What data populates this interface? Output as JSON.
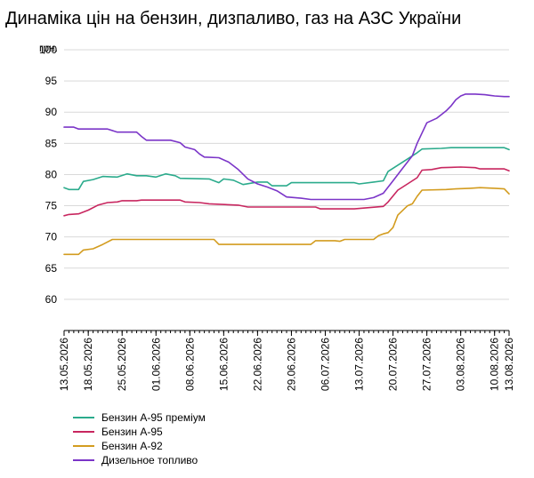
{
  "header": {
    "title": "Динаміка цін на бензин, дизпаливо, газ на АЗС України"
  },
  "chart_data": {
    "type": "line",
    "title": "Динаміка цін на бензин, дизпаливо, газ на АЗС України",
    "ylabel": "грн.",
    "xlabel": "",
    "ylim": [
      55,
      100
    ],
    "xlim": [
      "13.05.2026",
      "13.08.2026"
    ],
    "yticks": [
      60,
      65,
      70,
      75,
      80,
      85,
      90,
      95,
      100
    ],
    "xticks": [
      "13.05.2026",
      "18.05.2026",
      "25.05.2026",
      "01.06.2026",
      "08.06.2026",
      "15.06.2026",
      "22.06.2026",
      "29.06.2026",
      "06.07.2026",
      "13.07.2026",
      "20.07.2026",
      "27.07.2026",
      "03.08.2026",
      "10.08.2026",
      "13.08.2026"
    ],
    "grid": "horizontal",
    "legend_position": "bottom",
    "series": [
      {
        "name": "Бензин А-95 преміум",
        "color": "#2bab8c",
        "points": [
          [
            "13.05.2026",
            77.9
          ],
          [
            "14.05.2026",
            77.6
          ],
          [
            "16.05.2026",
            77.6
          ],
          [
            "17.05.2026",
            78.9
          ],
          [
            "19.05.2026",
            79.2
          ],
          [
            "21.05.2026",
            79.7
          ],
          [
            "24.05.2026",
            79.6
          ],
          [
            "26.05.2026",
            80.1
          ],
          [
            "28.05.2026",
            79.8
          ],
          [
            "30.05.2026",
            79.8
          ],
          [
            "01.06.2026",
            79.6
          ],
          [
            "03.06.2026",
            80.1
          ],
          [
            "05.06.2026",
            79.8
          ],
          [
            "06.06.2026",
            79.4
          ],
          [
            "12.06.2026",
            79.3
          ],
          [
            "14.06.2026",
            78.7
          ],
          [
            "15.06.2026",
            79.3
          ],
          [
            "17.06.2026",
            79.1
          ],
          [
            "19.06.2026",
            78.4
          ],
          [
            "22.06.2026",
            78.8
          ],
          [
            "24.06.2026",
            78.8
          ],
          [
            "25.06.2026",
            78.2
          ],
          [
            "28.06.2026",
            78.2
          ],
          [
            "29.06.2026",
            78.7
          ],
          [
            "12.07.2026",
            78.7
          ],
          [
            "13.07.2026",
            78.5
          ],
          [
            "16.07.2026",
            78.8
          ],
          [
            "18.07.2026",
            79.0
          ],
          [
            "19.07.2026",
            80.5
          ],
          [
            "21.07.2026",
            81.5
          ],
          [
            "23.07.2026",
            82.5
          ],
          [
            "25.07.2026",
            83.5
          ],
          [
            "26.07.2026",
            84.1
          ],
          [
            "30.07.2026",
            84.2
          ],
          [
            "01.08.2026",
            84.3
          ],
          [
            "12.08.2026",
            84.3
          ],
          [
            "13.08.2026",
            84.0
          ]
        ]
      },
      {
        "name": "Бензин А-95",
        "color": "#c8265f",
        "points": [
          [
            "13.05.2026",
            73.4
          ],
          [
            "14.05.2026",
            73.6
          ],
          [
            "16.05.2026",
            73.7
          ],
          [
            "18.05.2026",
            74.3
          ],
          [
            "20.05.2026",
            75.1
          ],
          [
            "22.05.2026",
            75.5
          ],
          [
            "24.05.2026",
            75.6
          ],
          [
            "25.05.2026",
            75.8
          ],
          [
            "28.05.2026",
            75.8
          ],
          [
            "29.05.2026",
            75.9
          ],
          [
            "06.06.2026",
            75.9
          ],
          [
            "07.06.2026",
            75.6
          ],
          [
            "10.06.2026",
            75.5
          ],
          [
            "12.06.2026",
            75.3
          ],
          [
            "18.06.2026",
            75.1
          ],
          [
            "20.06.2026",
            74.8
          ],
          [
            "04.07.2026",
            74.8
          ],
          [
            "05.07.2026",
            74.5
          ],
          [
            "12.07.2026",
            74.5
          ],
          [
            "15.07.2026",
            74.7
          ],
          [
            "18.07.2026",
            74.9
          ],
          [
            "19.07.2026",
            75.6
          ],
          [
            "21.07.2026",
            77.5
          ],
          [
            "23.07.2026",
            78.5
          ],
          [
            "25.07.2026",
            79.5
          ],
          [
            "26.07.2026",
            80.7
          ],
          [
            "28.07.2026",
            80.8
          ],
          [
            "30.07.2026",
            81.1
          ],
          [
            "03.08.2026",
            81.2
          ],
          [
            "06.08.2026",
            81.1
          ],
          [
            "07.08.2026",
            80.9
          ],
          [
            "12.08.2026",
            80.9
          ],
          [
            "13.08.2026",
            80.6
          ]
        ]
      },
      {
        "name": "Бензин А-92",
        "color": "#d39c1f",
        "points": [
          [
            "13.05.2026",
            67.2
          ],
          [
            "16.05.2026",
            67.2
          ],
          [
            "17.05.2026",
            67.9
          ],
          [
            "19.05.2026",
            68.1
          ],
          [
            "21.05.2026",
            68.8
          ],
          [
            "23.05.2026",
            69.6
          ],
          [
            "13.06.2026",
            69.6
          ],
          [
            "14.06.2026",
            68.8
          ],
          [
            "03.07.2026",
            68.8
          ],
          [
            "04.07.2026",
            69.4
          ],
          [
            "08.07.2026",
            69.4
          ],
          [
            "09.07.2026",
            69.3
          ],
          [
            "10.07.2026",
            69.6
          ],
          [
            "16.07.2026",
            69.6
          ],
          [
            "17.07.2026",
            70.2
          ],
          [
            "18.07.2026",
            70.5
          ],
          [
            "19.07.2026",
            70.7
          ],
          [
            "20.07.2026",
            71.5
          ],
          [
            "21.07.2026",
            73.5
          ],
          [
            "23.07.2026",
            75.0
          ],
          [
            "24.07.2026",
            75.3
          ],
          [
            "25.07.2026",
            76.5
          ],
          [
            "26.07.2026",
            77.5
          ],
          [
            "31.07.2026",
            77.6
          ],
          [
            "02.08.2026",
            77.7
          ],
          [
            "05.08.2026",
            77.8
          ],
          [
            "07.08.2026",
            77.9
          ],
          [
            "10.08.2026",
            77.8
          ],
          [
            "12.08.2026",
            77.7
          ],
          [
            "13.08.2026",
            76.9
          ]
        ]
      },
      {
        "name": "Дизельное топливо",
        "color": "#7b35c8",
        "points": [
          [
            "13.05.2026",
            87.6
          ],
          [
            "15.05.2026",
            87.6
          ],
          [
            "16.05.2026",
            87.3
          ],
          [
            "22.05.2026",
            87.3
          ],
          [
            "24.05.2026",
            86.8
          ],
          [
            "28.05.2026",
            86.8
          ],
          [
            "29.05.2026",
            86.1
          ],
          [
            "30.05.2026",
            85.5
          ],
          [
            "04.06.2026",
            85.5
          ],
          [
            "06.06.2026",
            85.1
          ],
          [
            "07.06.2026",
            84.4
          ],
          [
            "09.06.2026",
            84.0
          ],
          [
            "10.06.2026",
            83.3
          ],
          [
            "11.06.2026",
            82.8
          ],
          [
            "14.06.2026",
            82.7
          ],
          [
            "16.06.2026",
            82.0
          ],
          [
            "18.06.2026",
            80.8
          ],
          [
            "20.06.2026",
            79.3
          ],
          [
            "22.06.2026",
            78.5
          ],
          [
            "24.06.2026",
            78.0
          ],
          [
            "26.06.2026",
            77.4
          ],
          [
            "27.06.2026",
            76.9
          ],
          [
            "28.06.2026",
            76.4
          ],
          [
            "01.07.2026",
            76.2
          ],
          [
            "03.07.2026",
            76.0
          ],
          [
            "14.07.2026",
            76.0
          ],
          [
            "16.07.2026",
            76.3
          ],
          [
            "18.07.2026",
            77.0
          ],
          [
            "20.07.2026",
            79.0
          ],
          [
            "22.07.2026",
            81.0
          ],
          [
            "24.07.2026",
            83.0
          ],
          [
            "25.07.2026",
            85.0
          ],
          [
            "27.07.2026",
            88.3
          ],
          [
            "29.07.2026",
            89.0
          ],
          [
            "31.07.2026",
            90.2
          ],
          [
            "01.08.2026",
            91.0
          ],
          [
            "02.08.2026",
            92.0
          ],
          [
            "03.08.2026",
            92.6
          ],
          [
            "04.08.2026",
            92.9
          ],
          [
            "06.08.2026",
            92.9
          ],
          [
            "08.08.2026",
            92.8
          ],
          [
            "09.08.2026",
            92.7
          ],
          [
            "10.08.2026",
            92.6
          ],
          [
            "12.08.2026",
            92.5
          ],
          [
            "13.08.2026",
            92.5
          ]
        ]
      }
    ]
  }
}
